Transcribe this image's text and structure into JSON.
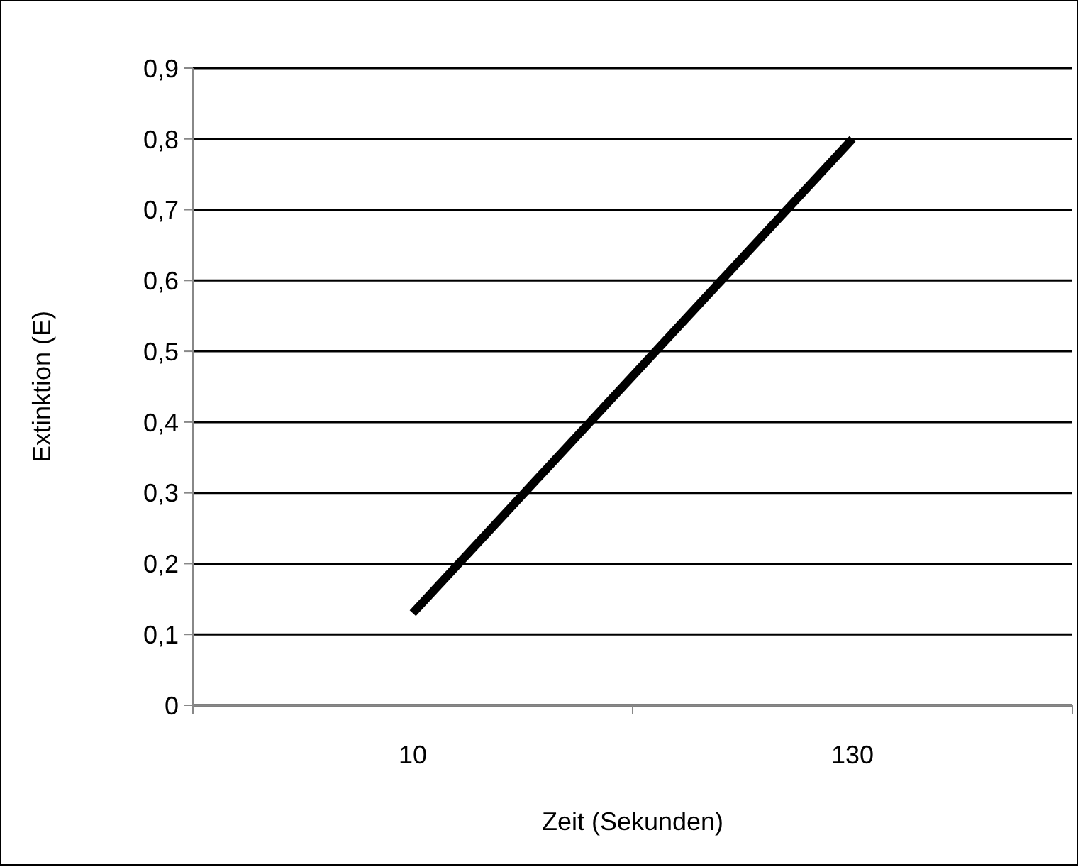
{
  "chart_data": {
    "type": "line",
    "xlabel": "Zeit (Sekunden)",
    "ylabel": "Extinktion (E)",
    "categories": [
      "10",
      "130"
    ],
    "series": [
      {
        "color": "#000000",
        "values": [
          0.13,
          0.8
        ]
      }
    ],
    "ylim": [
      0,
      0.9
    ],
    "yticks": [
      {
        "value": 0,
        "label": "0"
      },
      {
        "value": 0.1,
        "label": "0,1"
      },
      {
        "value": 0.2,
        "label": "0,2"
      },
      {
        "value": 0.3,
        "label": "0,3"
      },
      {
        "value": 0.4,
        "label": "0,4"
      },
      {
        "value": 0.5,
        "label": "0,5"
      },
      {
        "value": 0.6,
        "label": "0,6"
      },
      {
        "value": 0.7,
        "label": "0,7"
      },
      {
        "value": 0.8,
        "label": "0,8"
      },
      {
        "value": 0.9,
        "label": "0,9"
      }
    ],
    "grid": "y",
    "legend": false,
    "marker": "none",
    "line_style": "solid"
  }
}
